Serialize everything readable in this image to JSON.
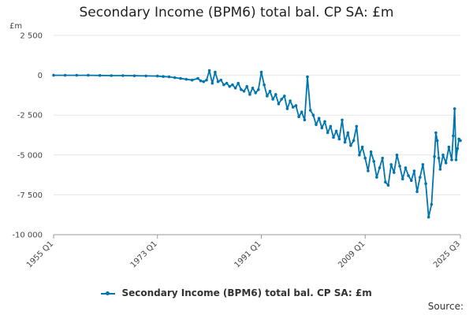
{
  "chart_data": {
    "type": "line",
    "title": "Secondary Income (BPM6) total bal. CP SA: £m",
    "ylabel": "£m",
    "xlabel": "",
    "ylim": [
      -10000,
      2500
    ],
    "yticks": [
      2500,
      0,
      -2500,
      -5000,
      -7500,
      -10000
    ],
    "ytick_labels": [
      "2 500",
      "0",
      "-2 500",
      "-5 000",
      "-7 500",
      "-10 000"
    ],
    "xticks": [
      "1955 Q1",
      "1973 Q1",
      "1991 Q1",
      "2009 Q1",
      "2025 Q3"
    ],
    "grid": true,
    "legend_position": "bottom",
    "series": [
      {
        "name": "Secondary Income (BPM6) total bal. CP SA: £m",
        "color": "#0075b0",
        "x": [
          "1955 Q1",
          "1957 Q1",
          "1959 Q1",
          "1961 Q1",
          "1963 Q1",
          "1965 Q1",
          "1967 Q1",
          "1969 Q1",
          "1971 Q1",
          "1973 Q1",
          "1974 Q1",
          "1975 Q1",
          "1976 Q1",
          "1977 Q1",
          "1978 Q1",
          "1979 Q1",
          "1980 Q1",
          "1980 Q3",
          "1981 Q1",
          "1981 Q3",
          "1982 Q1",
          "1982 Q3",
          "1983 Q1",
          "1983 Q3",
          "1984 Q1",
          "1984 Q3",
          "1985 Q1",
          "1985 Q3",
          "1986 Q1",
          "1986 Q3",
          "1987 Q1",
          "1987 Q3",
          "1988 Q1",
          "1988 Q3",
          "1989 Q1",
          "1989 Q3",
          "1990 Q1",
          "1990 Q3",
          "1991 Q1",
          "1991 Q3",
          "1992 Q1",
          "1992 Q3",
          "1993 Q1",
          "1993 Q3",
          "1994 Q1",
          "1994 Q3",
          "1995 Q1",
          "1995 Q3",
          "1996 Q1",
          "1996 Q3",
          "1997 Q1",
          "1997 Q3",
          "1998 Q1",
          "1998 Q3",
          "1999 Q1",
          "1999 Q3",
          "2000 Q1",
          "2000 Q3",
          "2001 Q1",
          "2001 Q3",
          "2002 Q1",
          "2002 Q3",
          "2003 Q1",
          "2003 Q3",
          "2004 Q1",
          "2004 Q3",
          "2005 Q1",
          "2005 Q3",
          "2006 Q1",
          "2006 Q3",
          "2007 Q1",
          "2007 Q3",
          "2008 Q1",
          "2008 Q3",
          "2009 Q1",
          "2009 Q3",
          "2010 Q1",
          "2010 Q3",
          "2011 Q1",
          "2011 Q3",
          "2012 Q1",
          "2012 Q3",
          "2013 Q1",
          "2013 Q3",
          "2014 Q1",
          "2014 Q3",
          "2015 Q1",
          "2015 Q3",
          "2016 Q1",
          "2016 Q3",
          "2017 Q1",
          "2017 Q3",
          "2018 Q1",
          "2018 Q3",
          "2019 Q1",
          "2019 Q3",
          "2020 Q1",
          "2020 Q3",
          "2021 Q1",
          "2021 Q2",
          "2021 Q3",
          "2021 Q4",
          "2022 Q1",
          "2022 Q3",
          "2023 Q1",
          "2023 Q3",
          "2024 Q1",
          "2024 Q2",
          "2024 Q3",
          "2024 Q4",
          "2025 Q1",
          "2025 Q2",
          "2025 Q3"
        ],
        "values": [
          0,
          0,
          0,
          0,
          -10,
          -20,
          -20,
          -30,
          -40,
          -50,
          -80,
          -100,
          -150,
          -200,
          -250,
          -300,
          -200,
          -350,
          -400,
          -300,
          300,
          -500,
          200,
          -400,
          -300,
          -600,
          -500,
          -700,
          -600,
          -800,
          -500,
          -900,
          -1000,
          -700,
          -1200,
          -800,
          -1100,
          -900,
          200,
          -600,
          -1300,
          -1000,
          -1500,
          -1200,
          -1800,
          -1500,
          -1300,
          -2100,
          -1600,
          -2000,
          -1900,
          -2600,
          -2300,
          -2800,
          -100,
          -2200,
          -2500,
          -3100,
          -2700,
          -3300,
          -2900,
          -3600,
          -3200,
          -3900,
          -3500,
          -4000,
          -2800,
          -4200,
          -3600,
          -4400,
          -4100,
          -3200,
          -5000,
          -4500,
          -5200,
          -6000,
          -4800,
          -5400,
          -6400,
          -5800,
          -5200,
          -6700,
          -6900,
          -5600,
          -6100,
          -5000,
          -5700,
          -6500,
          -5800,
          -6300,
          -6600,
          -6000,
          -7300,
          -6400,
          -5600,
          -6800,
          -8900,
          -8100,
          -5100,
          -3600,
          -4100,
          -5200,
          -5900,
          -5000,
          -5500,
          -4500,
          -5300,
          -3800,
          -2100,
          -5300,
          -4600,
          -4000,
          -4100
        ]
      }
    ]
  },
  "source_label": "Source:"
}
